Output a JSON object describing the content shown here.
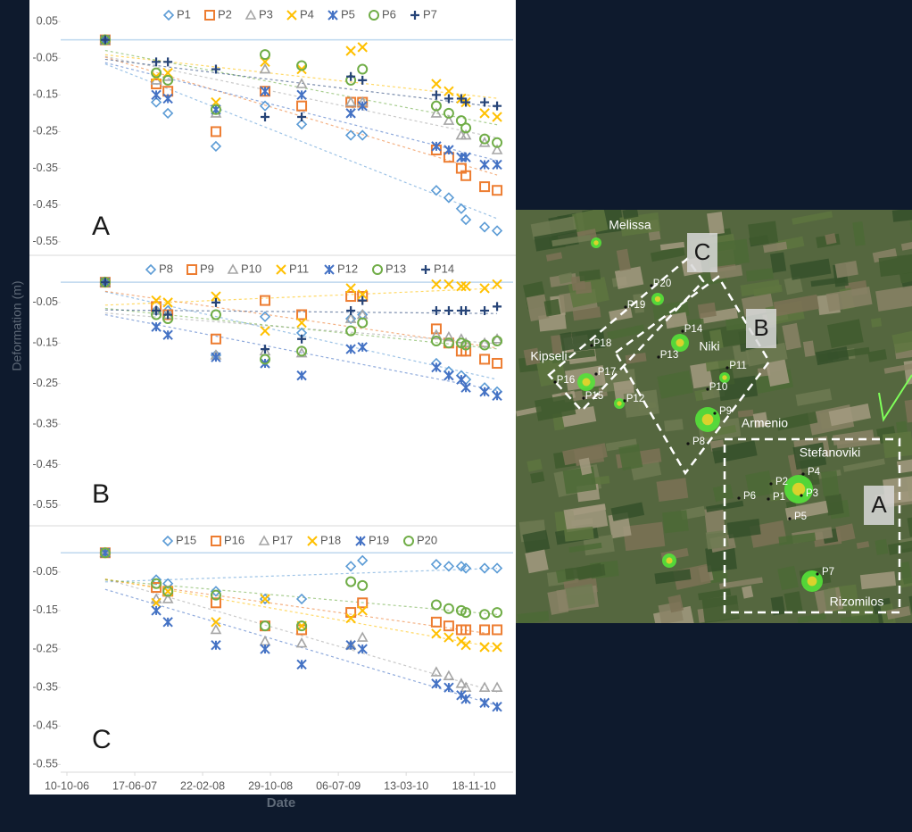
{
  "chart_data": [
    {
      "type": "scatter",
      "panel_label": "A",
      "x": [
        "2007-02-28",
        "2007-09-04",
        "2007-10-17",
        "2008-04-11",
        "2008-10-09",
        "2009-02-21",
        "2009-08-21",
        "2009-10-03",
        "2010-07-02",
        "2010-08-17",
        "2010-10-02",
        "2010-10-19",
        "2010-12-27",
        "2011-02-11"
      ],
      "xlim": [
        "2006-09-17",
        "2011-04-11"
      ],
      "ylim": [
        -0.57,
        0.06
      ],
      "yticks": [
        0.05,
        -0.05,
        -0.15,
        -0.25,
        -0.35,
        -0.45,
        -0.55
      ],
      "legend": "top",
      "trendline": true,
      "series": [
        {
          "name": "P1",
          "color": "#5b9bd5",
          "marker": "diamond",
          "values": [
            0,
            -0.17,
            -0.2,
            -0.29,
            -0.18,
            -0.23,
            -0.26,
            -0.26,
            -0.41,
            -0.43,
            -0.46,
            -0.49,
            -0.51,
            -0.52
          ]
        },
        {
          "name": "P2",
          "color": "#ed7d31",
          "marker": "square",
          "values": [
            0,
            -0.12,
            -0.14,
            -0.25,
            -0.14,
            -0.18,
            -0.17,
            -0.17,
            -0.3,
            -0.32,
            -0.35,
            -0.37,
            -0.4,
            -0.41
          ]
        },
        {
          "name": "P3",
          "color": "#a5a5a5",
          "marker": "triangle",
          "values": [
            0,
            -0.11,
            -0.1,
            -0.2,
            -0.08,
            -0.12,
            -0.17,
            -0.17,
            -0.2,
            -0.22,
            -0.26,
            -0.26,
            -0.28,
            -0.3
          ]
        },
        {
          "name": "P4",
          "color": "#ffc000",
          "marker": "x",
          "values": [
            0,
            -0.1,
            -0.09,
            -0.17,
            -0.06,
            -0.08,
            -0.03,
            -0.02,
            -0.12,
            -0.14,
            -0.16,
            -0.17,
            -0.2,
            -0.21
          ]
        },
        {
          "name": "P5",
          "color": "#4472c4",
          "marker": "asterisk",
          "values": [
            0,
            -0.15,
            -0.16,
            -0.19,
            -0.14,
            -0.15,
            -0.2,
            -0.18,
            -0.29,
            -0.3,
            -0.32,
            -0.32,
            -0.34,
            -0.34
          ]
        },
        {
          "name": "P6",
          "color": "#70ad47",
          "marker": "circle",
          "values": [
            0,
            -0.09,
            -0.11,
            -0.19,
            -0.04,
            -0.07,
            -0.11,
            -0.08,
            -0.18,
            -0.2,
            -0.22,
            -0.24,
            -0.27,
            -0.28
          ]
        },
        {
          "name": "P7",
          "color": "#264478",
          "marker": "plus",
          "values": [
            0,
            -0.06,
            -0.06,
            -0.08,
            -0.21,
            -0.21,
            -0.1,
            -0.11,
            -0.15,
            -0.16,
            -0.16,
            -0.17,
            -0.17,
            -0.18
          ]
        }
      ]
    },
    {
      "type": "scatter",
      "panel_label": "B",
      "y_label": "Deformation (m)",
      "x": [
        "2007-02-28",
        "2007-09-04",
        "2007-10-17",
        "2008-04-11",
        "2008-10-09",
        "2009-02-21",
        "2009-08-21",
        "2009-10-03",
        "2010-07-02",
        "2010-08-17",
        "2010-10-02",
        "2010-10-19",
        "2010-12-27",
        "2011-02-11"
      ],
      "xlim": [
        "2006-09-17",
        "2011-04-11"
      ],
      "ylim": [
        -0.57,
        0.04
      ],
      "yticks": [
        -0.05,
        -0.15,
        -0.25,
        -0.35,
        -0.45,
        -0.55
      ],
      "legend": "top",
      "trendline": true,
      "series": [
        {
          "name": "P8",
          "color": "#5b9bd5",
          "marker": "diamond",
          "values": [
            0,
            -0.07,
            -0.07,
            -0.18,
            -0.085,
            -0.125,
            -0.09,
            -0.08,
            -0.2,
            -0.22,
            -0.23,
            -0.24,
            -0.26,
            -0.27
          ]
        },
        {
          "name": "P9",
          "color": "#ed7d31",
          "marker": "square",
          "values": [
            0,
            -0.06,
            -0.08,
            -0.14,
            -0.045,
            -0.08,
            -0.035,
            -0.035,
            -0.115,
            -0.15,
            -0.17,
            -0.17,
            -0.19,
            -0.2
          ]
        },
        {
          "name": "P10",
          "color": "#a5a5a5",
          "marker": "triangle",
          "values": [
            0,
            -0.07,
            -0.08,
            -0.18,
            -0.17,
            -0.175,
            -0.09,
            -0.08,
            -0.13,
            -0.135,
            -0.14,
            -0.15,
            -0.15,
            -0.14
          ]
        },
        {
          "name": "P11",
          "color": "#ffc000",
          "marker": "x",
          "values": [
            0,
            -0.045,
            -0.05,
            -0.035,
            -0.12,
            -0.1,
            -0.015,
            -0.03,
            -0.005,
            -0.005,
            -0.01,
            -0.01,
            -0.015,
            -0.005
          ]
        },
        {
          "name": "P12",
          "color": "#4472c4",
          "marker": "asterisk",
          "values": [
            0,
            -0.11,
            -0.13,
            -0.185,
            -0.2,
            -0.23,
            -0.165,
            -0.16,
            -0.21,
            -0.23,
            -0.24,
            -0.26,
            -0.27,
            -0.28
          ]
        },
        {
          "name": "P13",
          "color": "#70ad47",
          "marker": "circle",
          "values": [
            0,
            -0.08,
            -0.09,
            -0.08,
            -0.19,
            -0.17,
            -0.12,
            -0.1,
            -0.145,
            -0.15,
            -0.15,
            -0.155,
            -0.155,
            -0.145
          ]
        },
        {
          "name": "P14",
          "color": "#264478",
          "marker": "plus",
          "values": [
            0,
            -0.07,
            -0.08,
            -0.05,
            -0.165,
            -0.14,
            -0.07,
            -0.045,
            -0.07,
            -0.07,
            -0.07,
            -0.07,
            -0.07,
            -0.06
          ]
        }
      ]
    },
    {
      "type": "scatter",
      "panel_label": "C",
      "x_label": "Date",
      "x": [
        "2007-02-28",
        "2007-09-04",
        "2007-10-17",
        "2008-04-11",
        "2008-10-09",
        "2009-02-21",
        "2009-08-21",
        "2009-10-03",
        "2010-07-02",
        "2010-08-17",
        "2010-10-02",
        "2010-10-19",
        "2010-12-27",
        "2011-02-11"
      ],
      "xlim": [
        "2006-09-17",
        "2011-04-11"
      ],
      "xticks": [
        {
          "value": "2006-10-10",
          "label": "10-10-06"
        },
        {
          "value": "2007-06-17",
          "label": "17-06-07"
        },
        {
          "value": "2008-02-22",
          "label": "22-02-08"
        },
        {
          "value": "2008-10-29",
          "label": "29-10-08"
        },
        {
          "value": "2009-07-06",
          "label": "06-07-09"
        },
        {
          "value": "2010-03-13",
          "label": "13-03-10"
        },
        {
          "value": "2010-11-18",
          "label": "18-11-10"
        }
      ],
      "ylim": [
        -0.57,
        0.04
      ],
      "yticks": [
        -0.05,
        -0.15,
        -0.25,
        -0.35,
        -0.45,
        -0.55
      ],
      "legend": "top",
      "trendline": true,
      "series": [
        {
          "name": "P15",
          "color": "#5b9bd5",
          "marker": "diamond",
          "values": [
            0,
            -0.07,
            -0.08,
            -0.1,
            -0.12,
            -0.12,
            -0.035,
            -0.02,
            -0.03,
            -0.035,
            -0.035,
            -0.04,
            -0.04,
            -0.04
          ]
        },
        {
          "name": "P16",
          "color": "#ed7d31",
          "marker": "square",
          "values": [
            0,
            -0.09,
            -0.1,
            -0.13,
            -0.19,
            -0.2,
            -0.155,
            -0.13,
            -0.18,
            -0.19,
            -0.2,
            -0.2,
            -0.2,
            -0.2
          ]
        },
        {
          "name": "P17",
          "color": "#a5a5a5",
          "marker": "triangle",
          "values": [
            0,
            -0.12,
            -0.12,
            -0.2,
            -0.23,
            -0.235,
            -0.24,
            -0.22,
            -0.31,
            -0.32,
            -0.34,
            -0.35,
            -0.35,
            -0.35
          ]
        },
        {
          "name": "P18",
          "color": "#ffc000",
          "marker": "x",
          "values": [
            0,
            -0.13,
            -0.1,
            -0.18,
            -0.12,
            -0.19,
            -0.17,
            -0.15,
            -0.21,
            -0.22,
            -0.23,
            -0.24,
            -0.245,
            -0.245
          ]
        },
        {
          "name": "P19",
          "color": "#4472c4",
          "marker": "asterisk",
          "values": [
            0,
            -0.15,
            -0.18,
            -0.24,
            -0.25,
            -0.29,
            -0.24,
            -0.25,
            -0.34,
            -0.35,
            -0.37,
            -0.38,
            -0.39,
            -0.4
          ]
        },
        {
          "name": "P20",
          "color": "#70ad47",
          "marker": "circle",
          "values": [
            0,
            -0.08,
            -0.1,
            -0.11,
            -0.19,
            -0.19,
            -0.075,
            -0.085,
            -0.135,
            -0.145,
            -0.15,
            -0.155,
            -0.16,
            -0.155
          ]
        }
      ]
    }
  ],
  "map": {
    "places": [
      "Melissa",
      "Kipseli",
      "Niki",
      "Armenio",
      "Stefanoviki",
      "Rizomilos"
    ],
    "points": [
      "P1",
      "P2",
      "P3",
      "P4",
      "P5",
      "P6",
      "P7",
      "P8",
      "P9",
      "P10",
      "P11",
      "P12",
      "P13",
      "P14",
      "P15",
      "P16",
      "P17",
      "P18",
      "P19",
      "P20"
    ],
    "zones": [
      "C",
      "B",
      "A"
    ]
  }
}
